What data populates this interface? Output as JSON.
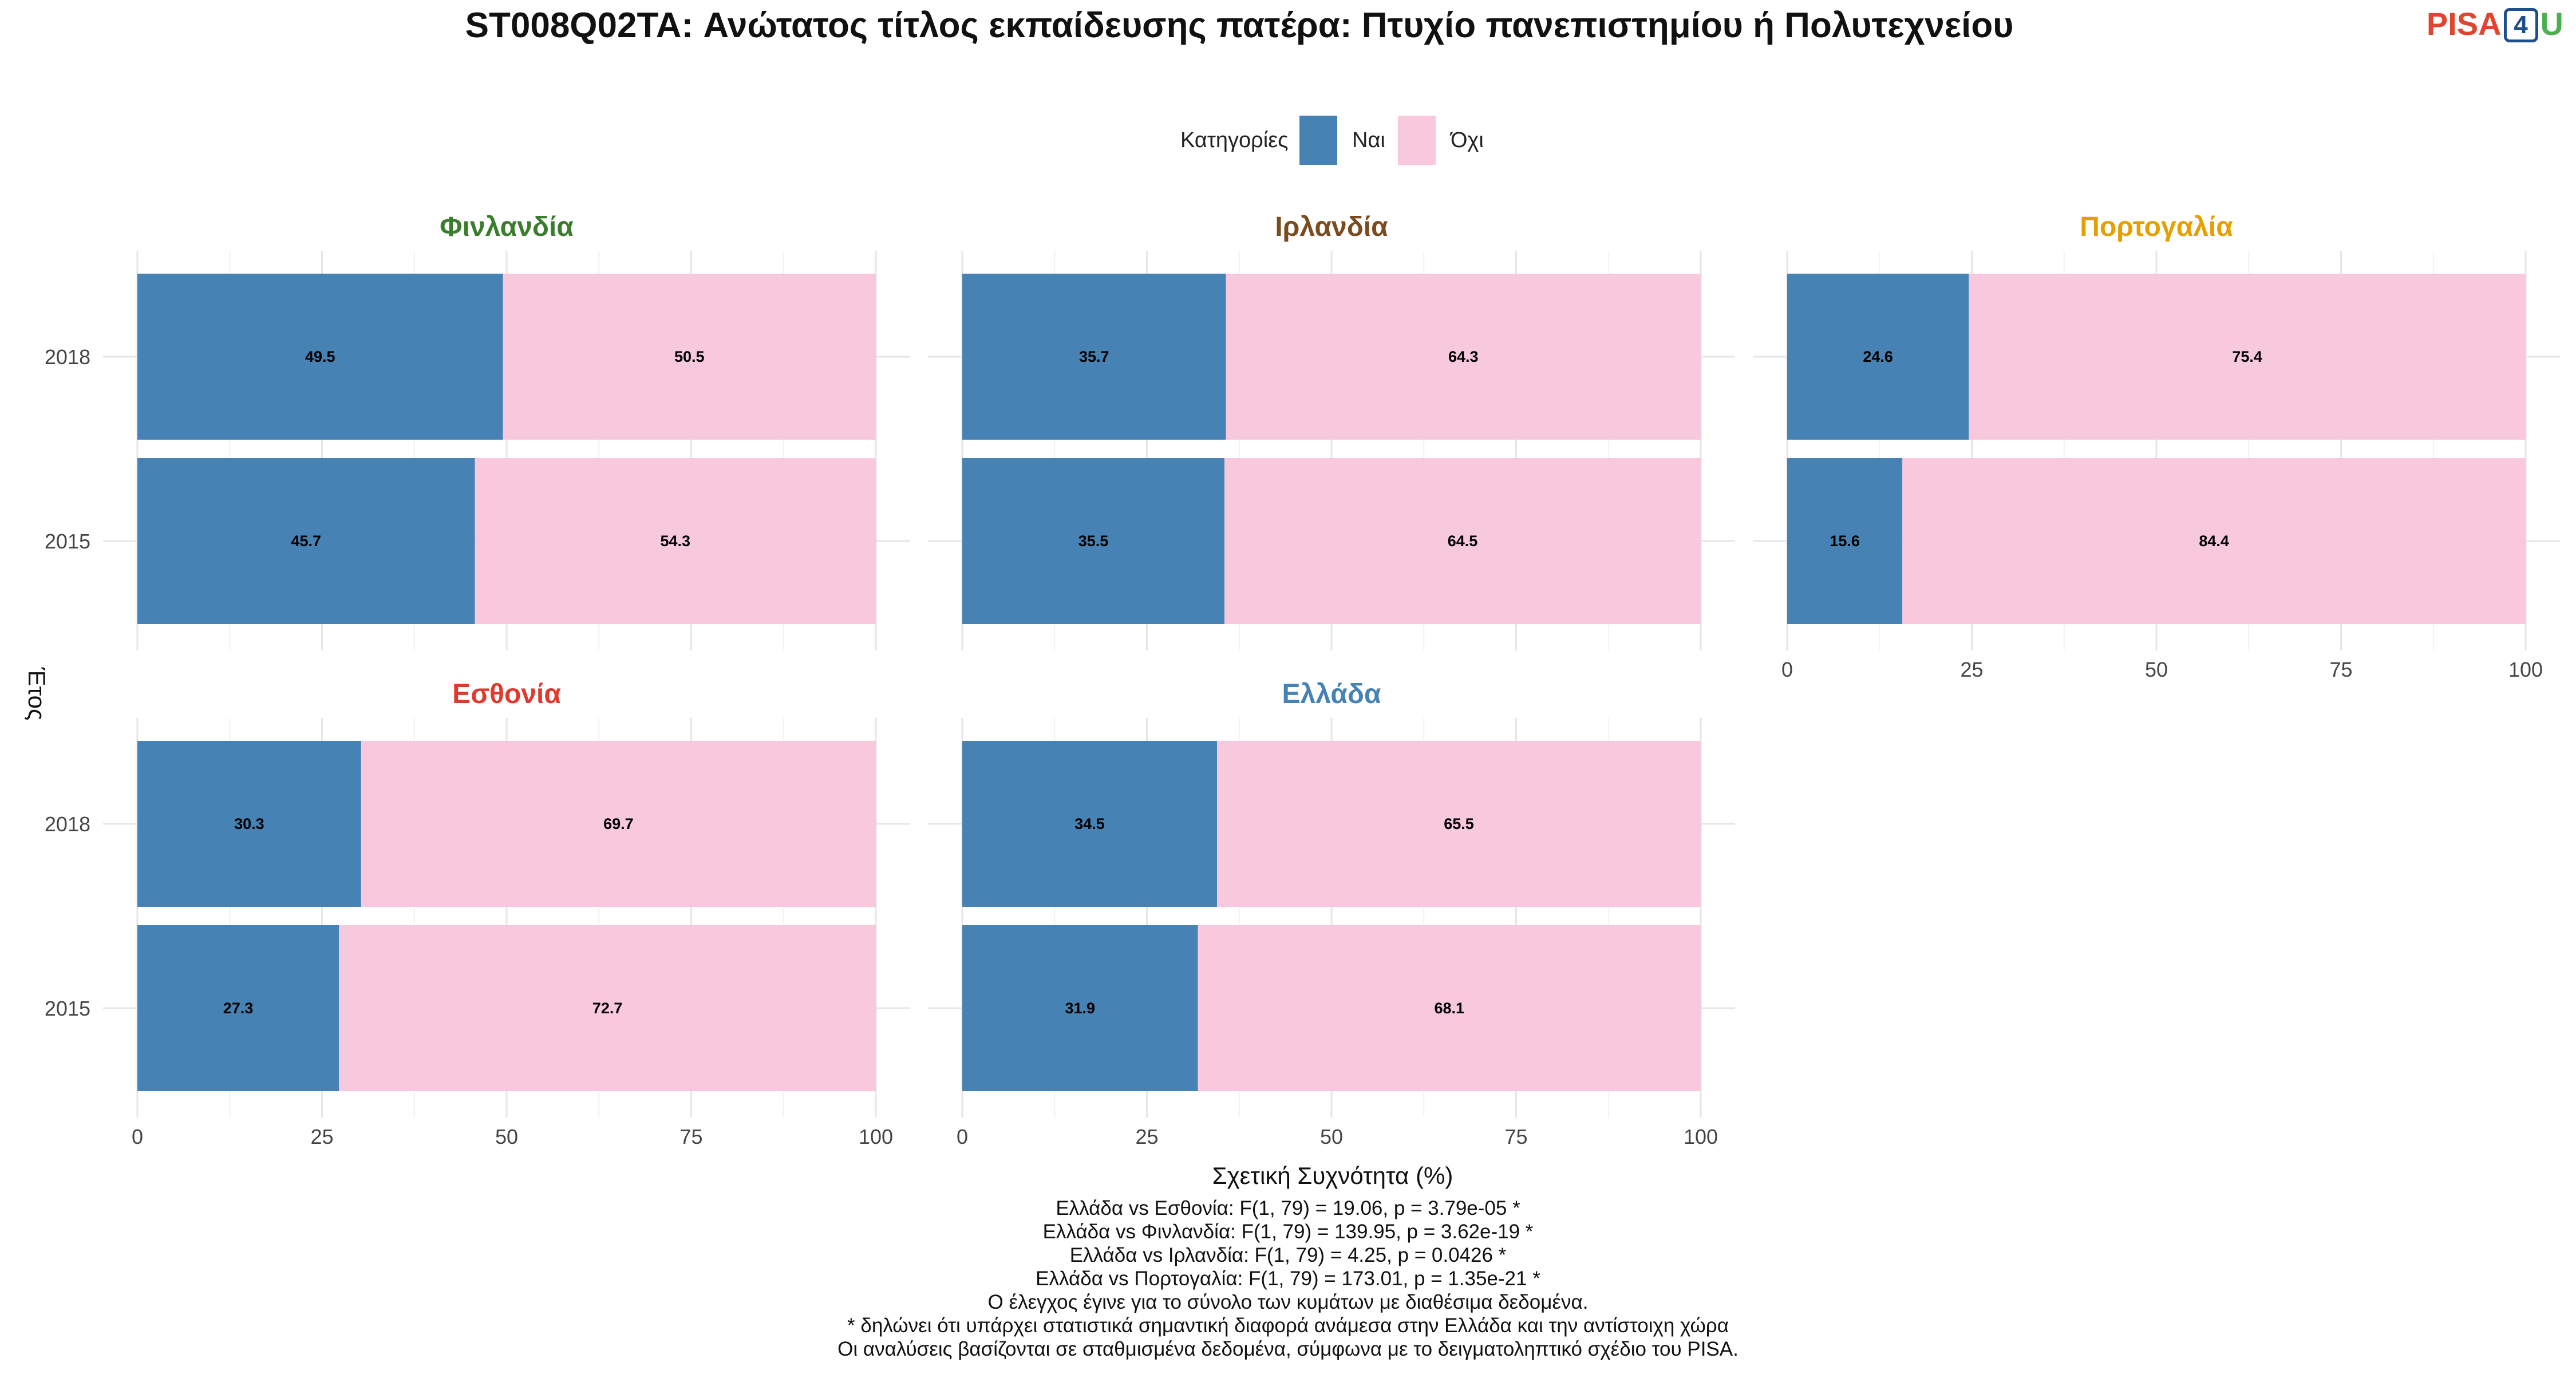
{
  "chart_data": {
    "type": "bar",
    "orientation": "horizontal",
    "stacked": true,
    "title": "ST008Q02TA: Ανώτατος τίτλος εκπαίδευσης πατέρα: Πτυχίο πανεπιστημίου ή Πολυτεχνείου",
    "xlabel": "Σχετική Συχνότητα (%)",
    "ylabel": "Έτος",
    "xlim": [
      0,
      100
    ],
    "x_ticks": [
      0,
      25,
      50,
      75,
      100
    ],
    "grid": true,
    "legend": {
      "title": "Κατηγορίες",
      "placement": "top-center",
      "entries": [
        {
          "name": "Ναι",
          "color": "#4682B4"
        },
        {
          "name": "Όχι",
          "color": "#F8C8DC"
        }
      ]
    },
    "categories": [
      "2018",
      "2015"
    ],
    "panels": [
      {
        "name": "Φινλανδία",
        "color": "#3A7D2C",
        "series": [
          {
            "name": "Ναι",
            "values": [
              49.5,
              45.7
            ]
          },
          {
            "name": "Όχι",
            "values": [
              50.5,
              54.3
            ]
          }
        ]
      },
      {
        "name": "Ιρλανδία",
        "color": "#7B4A1E",
        "series": [
          {
            "name": "Ναι",
            "values": [
              35.7,
              35.5
            ]
          },
          {
            "name": "Όχι",
            "values": [
              64.3,
              64.5
            ]
          }
        ]
      },
      {
        "name": "Πορτογαλία",
        "color": "#E69F00",
        "series": [
          {
            "name": "Ναι",
            "values": [
              24.6,
              15.6
            ]
          },
          {
            "name": "Όχι",
            "values": [
              75.4,
              84.4
            ]
          }
        ]
      },
      {
        "name": "Εσθονία",
        "color": "#E03A2F",
        "series": [
          {
            "name": "Ναι",
            "values": [
              30.3,
              27.3
            ]
          },
          {
            "name": "Όχι",
            "values": [
              69.7,
              72.7
            ]
          }
        ]
      },
      {
        "name": "Ελλάδα",
        "color": "#4682B4",
        "series": [
          {
            "name": "Ναι",
            "values": [
              34.5,
              31.9
            ]
          },
          {
            "name": "Όχι",
            "values": [
              65.5,
              68.1
            ]
          }
        ]
      }
    ]
  },
  "logo": {
    "pisa": "PISA",
    "four": "4",
    "u": "U"
  },
  "caption": [
    "Ελλάδα vs Εσθονία: F(1, 79) = 19.06, p = 3.79e-05 *",
    "Ελλάδα vs Φινλανδία: F(1, 79) = 139.95, p = 3.62e-19 *",
    "Ελλάδα vs Ιρλανδία: F(1, 79) = 4.25, p = 0.0426 *",
    "Ελλάδα vs Πορτογαλία: F(1, 79) = 173.01, p = 1.35e-21 *",
    "Ο έλεγχος έγινε για το σύνολο των κυμάτων με διαθέσιμα δεδομένα.",
    "* δηλώνει ότι υπάρχει στατιστικά σημαντική διαφορά ανάμεσα στην Ελλάδα και την αντίστοιχη χώρα",
    "Οι αναλύσεις βασίζονται σε σταθμισμένα δεδομένα, σύμφωνα με το δειγματοληπτικό σχέδιο του PISA."
  ]
}
